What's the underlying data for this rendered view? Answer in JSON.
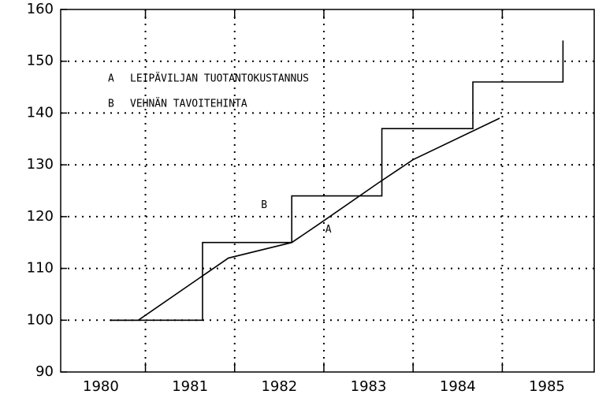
{
  "chart_data": {
    "type": "line",
    "xlim": [
      1979.55,
      1985.53
    ],
    "ylim": [
      90,
      160
    ],
    "xticks": [
      1980,
      1981,
      1982,
      1983,
      1984,
      1985
    ],
    "xgrid": [
      1980.5,
      1981.5,
      1982.5,
      1983.5,
      1984.5
    ],
    "yticks": [
      90,
      100,
      110,
      120,
      130,
      140,
      150,
      160
    ],
    "grid": true,
    "series": [
      {
        "key": "A",
        "name": "LEIPÄVILJAN TUOTANTOKUSTANNUS",
        "color": "#000000",
        "x": [
          1980.1,
          1980.42,
          1981.43,
          1982.14,
          1982.44,
          1983.11,
          1983.5,
          1984.47
        ],
        "values": [
          100,
          100,
          112,
          115,
          118.5,
          126.5,
          131,
          139
        ],
        "label_at": [
          1982.55,
          117.5
        ]
      },
      {
        "key": "B",
        "name": "VEHNÄN TAVOITEHINTA",
        "color": "#000000",
        "x": [
          1980.1,
          1981.14,
          1981.14,
          1982.14,
          1982.14,
          1983.15,
          1983.15,
          1984.17,
          1984.17,
          1985.18,
          1985.18
        ],
        "values": [
          100,
          100,
          115,
          115,
          124,
          124,
          137,
          137,
          146,
          146,
          154
        ],
        "label_at": [
          1981.83,
          122.2
        ]
      }
    ]
  }
}
